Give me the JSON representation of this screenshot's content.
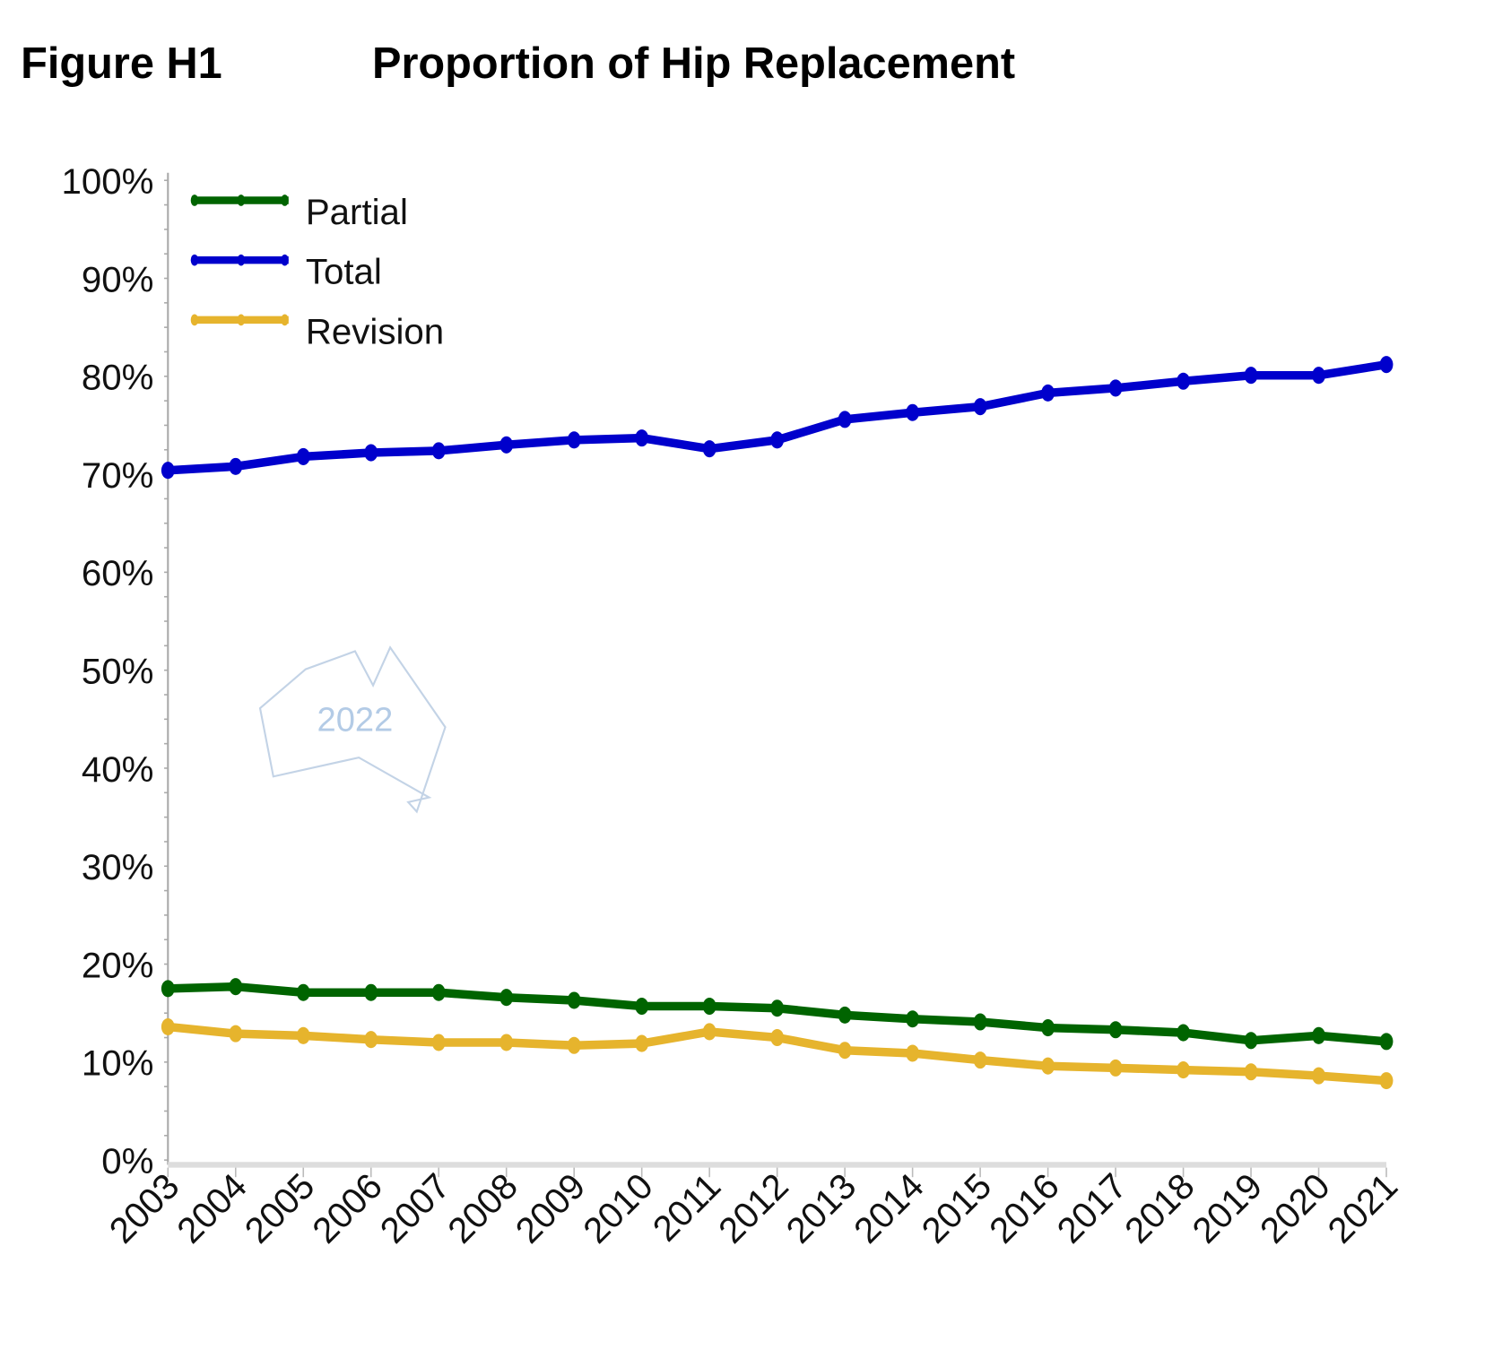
{
  "chart_data": {
    "type": "line",
    "figure_label": "Figure H1",
    "title": "Proportion of Hip Replacement",
    "watermark": "2022",
    "xlabel": "",
    "ylabel": "",
    "ylim": [
      0,
      100
    ],
    "y_ticks": [
      "0%",
      "10%",
      "20%",
      "30%",
      "40%",
      "50%",
      "60%",
      "70%",
      "80%",
      "90%",
      "100%"
    ],
    "legend_position": "top-left",
    "categories": [
      "2003",
      "2004",
      "2005",
      "2006",
      "2007",
      "2008",
      "2009",
      "2010",
      "2011",
      "2012",
      "2013",
      "2014",
      "2015",
      "2016",
      "2017",
      "2018",
      "2019",
      "2020",
      "2021"
    ],
    "series": [
      {
        "name": "Partial",
        "color": "#006400",
        "values": [
          17.5,
          17.7,
          17.1,
          17.1,
          17.1,
          16.6,
          16.3,
          15.7,
          15.7,
          15.5,
          14.8,
          14.4,
          14.1,
          13.5,
          13.3,
          13.0,
          12.2,
          12.7,
          12.1
        ]
      },
      {
        "name": "Total",
        "color": "#0000CC",
        "values": [
          70.4,
          70.8,
          71.8,
          72.2,
          72.4,
          73.0,
          73.5,
          73.7,
          72.6,
          73.5,
          75.6,
          76.3,
          76.9,
          78.3,
          78.8,
          79.5,
          80.1,
          80.1,
          81.2
        ]
      },
      {
        "name": "Revision",
        "color": "#E6B42D",
        "values": [
          13.6,
          12.9,
          12.7,
          12.3,
          12.0,
          12.0,
          11.7,
          11.9,
          13.1,
          12.5,
          11.2,
          10.9,
          10.2,
          9.6,
          9.4,
          9.2,
          9.0,
          8.6,
          8.1
        ]
      }
    ]
  }
}
